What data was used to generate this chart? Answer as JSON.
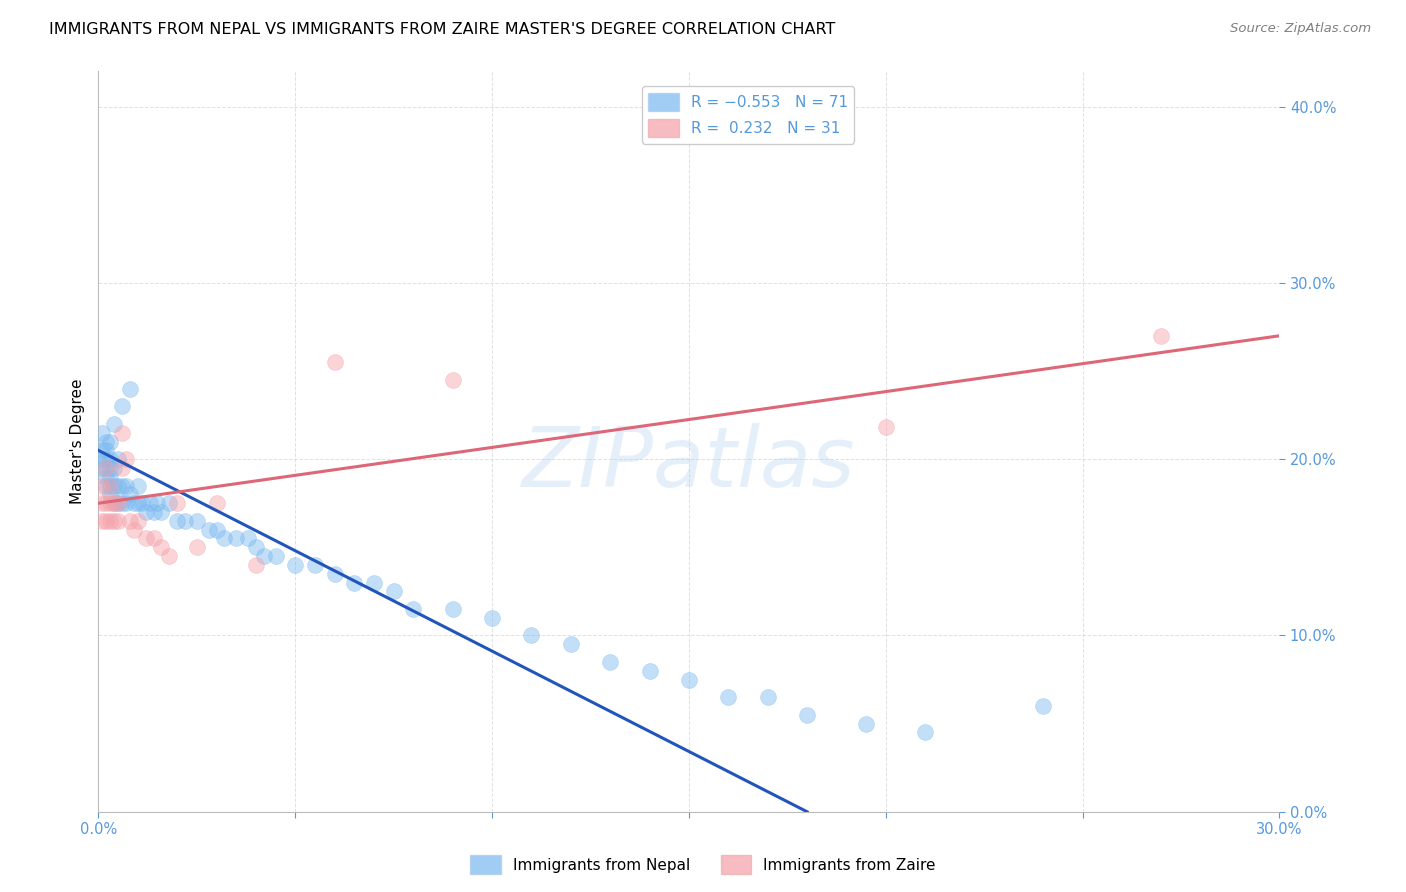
{
  "title": "IMMIGRANTS FROM NEPAL VS IMMIGRANTS FROM ZAIRE MASTER'S DEGREE CORRELATION CHART",
  "source": "Source: ZipAtlas.com",
  "ylabel_label": "Master's Degree",
  "xlim": [
    0.0,
    0.3
  ],
  "ylim": [
    0.0,
    0.42
  ],
  "color_blue": "#7ab8f0",
  "color_pink": "#f4a0a8",
  "line_blue": "#2255bb",
  "line_pink": "#dd6677",
  "watermark": "ZIPatlas",
  "nepal_scatter_x": [
    0.001,
    0.001,
    0.001,
    0.001,
    0.002,
    0.002,
    0.002,
    0.002,
    0.002,
    0.002,
    0.003,
    0.003,
    0.003,
    0.003,
    0.003,
    0.003,
    0.004,
    0.004,
    0.004,
    0.004,
    0.005,
    0.005,
    0.005,
    0.006,
    0.006,
    0.006,
    0.007,
    0.007,
    0.008,
    0.008,
    0.009,
    0.01,
    0.01,
    0.011,
    0.012,
    0.013,
    0.014,
    0.015,
    0.016,
    0.018,
    0.02,
    0.022,
    0.025,
    0.028,
    0.03,
    0.032,
    0.035,
    0.038,
    0.04,
    0.042,
    0.045,
    0.05,
    0.055,
    0.06,
    0.065,
    0.07,
    0.075,
    0.08,
    0.09,
    0.1,
    0.11,
    0.12,
    0.13,
    0.14,
    0.15,
    0.16,
    0.17,
    0.18,
    0.195,
    0.21,
    0.24
  ],
  "nepal_scatter_y": [
    0.195,
    0.2,
    0.205,
    0.215,
    0.185,
    0.19,
    0.195,
    0.2,
    0.205,
    0.21,
    0.18,
    0.185,
    0.19,
    0.195,
    0.2,
    0.21,
    0.175,
    0.185,
    0.195,
    0.22,
    0.175,
    0.185,
    0.2,
    0.175,
    0.185,
    0.23,
    0.175,
    0.185,
    0.18,
    0.24,
    0.175,
    0.175,
    0.185,
    0.175,
    0.17,
    0.175,
    0.17,
    0.175,
    0.17,
    0.175,
    0.165,
    0.165,
    0.165,
    0.16,
    0.16,
    0.155,
    0.155,
    0.155,
    0.15,
    0.145,
    0.145,
    0.14,
    0.14,
    0.135,
    0.13,
    0.13,
    0.125,
    0.115,
    0.115,
    0.11,
    0.1,
    0.095,
    0.085,
    0.08,
    0.075,
    0.065,
    0.065,
    0.055,
    0.05,
    0.045,
    0.06
  ],
  "zaire_scatter_x": [
    0.001,
    0.001,
    0.001,
    0.002,
    0.002,
    0.002,
    0.003,
    0.003,
    0.003,
    0.004,
    0.004,
    0.005,
    0.005,
    0.006,
    0.006,
    0.007,
    0.008,
    0.009,
    0.01,
    0.012,
    0.014,
    0.016,
    0.018,
    0.02,
    0.025,
    0.03,
    0.04,
    0.06,
    0.09,
    0.2,
    0.27
  ],
  "zaire_scatter_y": [
    0.165,
    0.175,
    0.185,
    0.165,
    0.175,
    0.195,
    0.165,
    0.175,
    0.185,
    0.165,
    0.175,
    0.165,
    0.175,
    0.195,
    0.215,
    0.2,
    0.165,
    0.16,
    0.165,
    0.155,
    0.155,
    0.15,
    0.145,
    0.175,
    0.15,
    0.175,
    0.14,
    0.255,
    0.245,
    0.218,
    0.27
  ],
  "nepal_line_x": [
    0.0,
    0.18
  ],
  "nepal_line_y": [
    0.205,
    0.0
  ],
  "zaire_line_x": [
    0.0,
    0.3
  ],
  "zaire_line_y": [
    0.175,
    0.27
  ],
  "grid_color": "#cccccc",
  "title_fontsize": 11.5,
  "axis_label_fontsize": 11,
  "tick_fontsize": 10.5,
  "tick_color": "#5599dd"
}
